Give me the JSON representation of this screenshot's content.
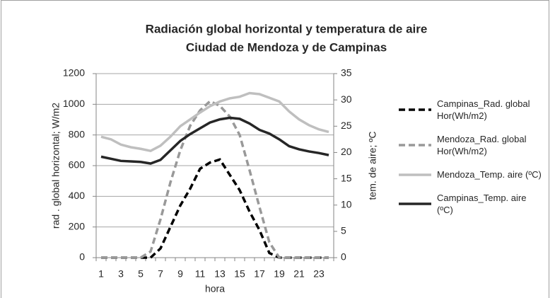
{
  "chart_data": {
    "type": "line",
    "title": "Radiación global horizontal y temperatura de aire",
    "subtitle": "Ciudad de Mendoza y de Campinas",
    "x_label": "hora",
    "y_label": "rad . global horizontal; W/m2",
    "y2_label": "tem. de aire; ºC",
    "categories": [
      1,
      null,
      3,
      null,
      5,
      null,
      7,
      null,
      9,
      null,
      11,
      null,
      13,
      null,
      15,
      null,
      17,
      null,
      19,
      null,
      21,
      null,
      23,
      null
    ],
    "ylim": [
      0,
      1200
    ],
    "yticks": [
      0,
      200,
      400,
      600,
      800,
      1000,
      1200
    ],
    "y2lim": [
      0,
      35
    ],
    "y2ticks": [
      0,
      5,
      10,
      15,
      20,
      25,
      30,
      35
    ],
    "grid": true,
    "legend": "right",
    "series": [
      {
        "name": "Campinas_Rad. global Hor(Wh/m2)",
        "color": "#000000",
        "dashed": true,
        "values": [
          0,
          0,
          0,
          0,
          0,
          0,
          60,
          200,
          340,
          450,
          580,
          620,
          640,
          540,
          440,
          300,
          180,
          30,
          0,
          0,
          0,
          0,
          0,
          0
        ]
      },
      {
        "name": "Mendoza_Rad. global Hor(Wh/m2)",
        "color": "#999999",
        "dashed": true,
        "values": [
          0,
          0,
          0,
          0,
          0,
          40,
          250,
          490,
          700,
          860,
          960,
          1020,
          990,
          920,
          800,
          570,
          330,
          100,
          0,
          0,
          0,
          0,
          0,
          0
        ]
      },
      {
        "name": "Mendoza_Temp. aire (ºC)",
        "color": "#bfbfbf",
        "dashed": false,
        "axis": "y2",
        "values": [
          23,
          22.5,
          21.5,
          21,
          20.7,
          20.3,
          21.3,
          23,
          25,
          26.3,
          27.6,
          28.8,
          29.7,
          30.3,
          30.6,
          31.3,
          31.1,
          30.4,
          29.7,
          27.8,
          26.3,
          25.2,
          24.4,
          23.9
        ]
      },
      {
        "name": "Campinas_Temp. aire (ºC)",
        "color": "#262626",
        "dashed": false,
        "axis": "y2",
        "values": [
          19.2,
          18.8,
          18.4,
          18.3,
          18.2,
          17.9,
          18.6,
          20.4,
          22.2,
          23.5,
          24.6,
          25.7,
          26.3,
          26.6,
          26.4,
          25.5,
          24.3,
          23.6,
          22.5,
          21.2,
          20.6,
          20.2,
          19.9,
          19.5
        ]
      }
    ]
  }
}
